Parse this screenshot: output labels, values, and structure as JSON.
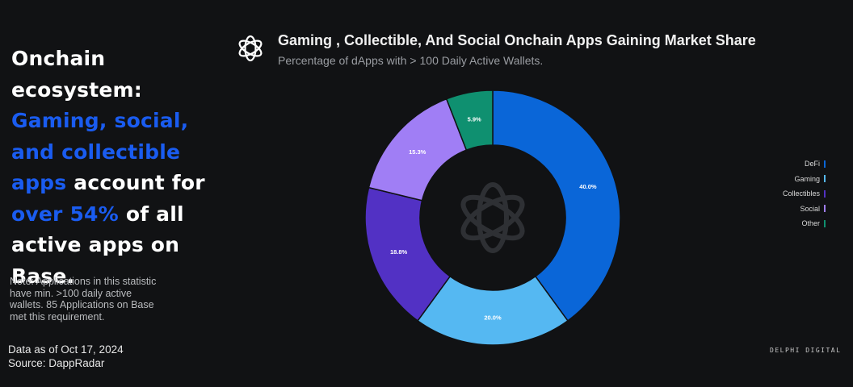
{
  "headline": {
    "part1": "Onchain ecosystem:",
    "highlight1": "Gaming, social, and collectible apps",
    "part2": "account for",
    "highlight2": "over 54%",
    "part3": "of all active apps on Base."
  },
  "note": "Note: Applications in this statistic have min. >100 daily active wallets. 85 Applications on Base met this requirement.",
  "footer": {
    "date_line": "Data as of Oct 17, 2024",
    "source_line": "Source: DappRadar"
  },
  "brand": "DELPHI DIGITAL",
  "colors": {
    "background": "#111214",
    "headline_highlight": "#1a5cf0"
  },
  "icons": {
    "title_logo": "delphi-knot-icon",
    "center_logo": "delphi-knot-icon"
  },
  "chart_data": {
    "type": "pie",
    "variant": "donut",
    "title": "Gaming , Collectible, And Social Onchain Apps Gaining Market Share",
    "subtitle": "Percentage of dApps with > 100 Daily Active Wallets.",
    "categories": [
      "DeFi",
      "Gaming",
      "Collectibles",
      "Social",
      "Other"
    ],
    "values": [
      40.0,
      20.0,
      18.8,
      15.3,
      5.9
    ],
    "labels": [
      "40.0%",
      "20.0%",
      "18.8%",
      "15.3%",
      "5.9%"
    ],
    "colors": [
      "#0a66d8",
      "#55b8f2",
      "#5231c4",
      "#a07ef5",
      "#0f9070"
    ],
    "legend_position": "right"
  }
}
